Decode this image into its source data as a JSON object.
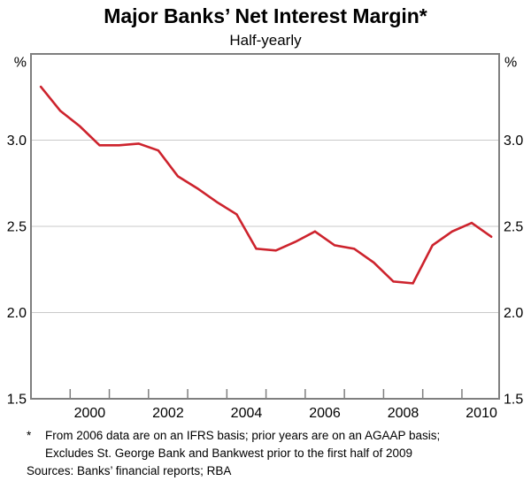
{
  "chart_data": {
    "type": "line",
    "title": "Major Banks’ Net Interest Margin*",
    "subtitle": "Half-yearly",
    "unit_left": "%",
    "unit_right": "%",
    "xlim": [
      1999.0,
      2010.95
    ],
    "ylim": [
      1.5,
      3.5
    ],
    "grid": true,
    "legend_position": "none",
    "y_gridline_values": [
      3.0,
      2.5,
      2.0
    ],
    "y_ticks": [
      {
        "value": 3.0,
        "label": "3.0"
      },
      {
        "value": 2.5,
        "label": "2.5"
      },
      {
        "value": 2.0,
        "label": "2.0"
      },
      {
        "value": 1.5,
        "label": "1.5"
      }
    ],
    "x_tickmark_years": [
      2000,
      2001,
      2002,
      2003,
      2004,
      2005,
      2006,
      2007,
      2008,
      2009,
      2010
    ],
    "x_tick_labels": [
      {
        "year": 2000,
        "label": "2000"
      },
      {
        "year": 2002,
        "label": "2002"
      },
      {
        "year": 2004,
        "label": "2004"
      },
      {
        "year": 2006,
        "label": "2006"
      },
      {
        "year": 2008,
        "label": "2008"
      },
      {
        "year": 2010,
        "label": "2010"
      }
    ],
    "x_start": 1999.25,
    "x_step": 0.5,
    "periods": [
      "1999 H1",
      "1999 H2",
      "2000 H1",
      "2000 H2",
      "2001 H1",
      "2001 H2",
      "2002 H1",
      "2002 H2",
      "2003 H1",
      "2003 H2",
      "2004 H1",
      "2004 H2",
      "2005 H1",
      "2005 H2",
      "2006 H1",
      "2006 H2",
      "2007 H1",
      "2007 H2",
      "2008 H1",
      "2008 H2",
      "2009 H1",
      "2009 H2",
      "2010 H1",
      "2010 H2"
    ],
    "series": [
      {
        "name": "Major banks’ net interest margin (%)",
        "color": "#cd232d",
        "values": [
          3.31,
          3.17,
          3.08,
          2.97,
          2.97,
          2.98,
          2.94,
          2.79,
          2.72,
          2.64,
          2.57,
          2.37,
          2.36,
          2.41,
          2.47,
          2.39,
          2.37,
          2.29,
          2.18,
          2.17,
          2.39,
          2.47,
          2.52,
          2.44
        ]
      }
    ]
  },
  "footnote": {
    "marker": "*",
    "lines": [
      "From 2006 data are on an IFRS basis; prior years are on an AGAAP basis;",
      "Excludes St. George Bank and Bankwest prior to the first half of 2009"
    ],
    "sources": "Sources: Banks’ financial reports; RBA"
  },
  "colors": {
    "line": "#cd232d",
    "axis_box": "#7f7f7f",
    "gridline": "#c9c9c9",
    "tick": "#7f7f7f",
    "text": "#000000"
  }
}
